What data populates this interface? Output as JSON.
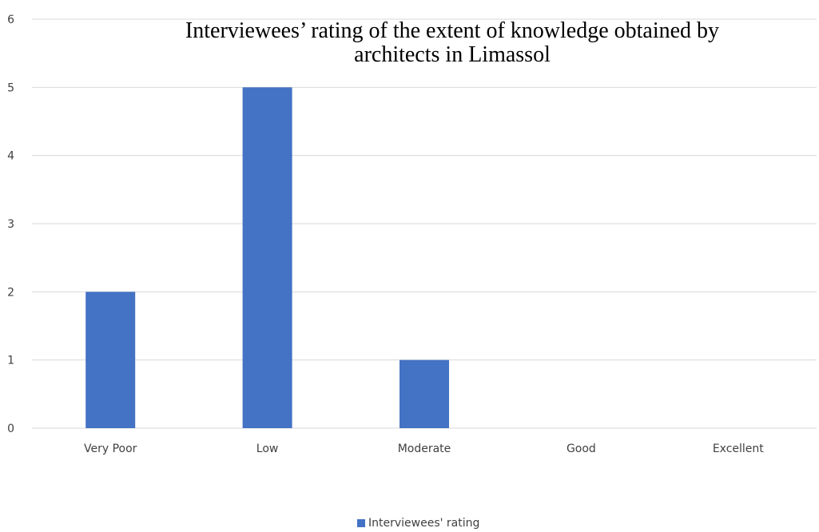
{
  "chart_data": {
    "type": "bar",
    "title_lines": [
      "Interviewees’ rating of the extent of knowledge obtained by",
      "architects in Limassol"
    ],
    "categories": [
      "Very Poor",
      "Low",
      "Moderate",
      "Good",
      "Excellent"
    ],
    "series": [
      {
        "name": "Interviewees' rating",
        "values": [
          2,
          5,
          1,
          0,
          0
        ],
        "color": "#4472c4"
      }
    ],
    "y_ticks": [
      "0",
      "1",
      "2",
      "3",
      "4",
      "5",
      "6"
    ],
    "ylim": [
      0,
      6
    ],
    "grid": true,
    "legend_position": "bottom"
  }
}
